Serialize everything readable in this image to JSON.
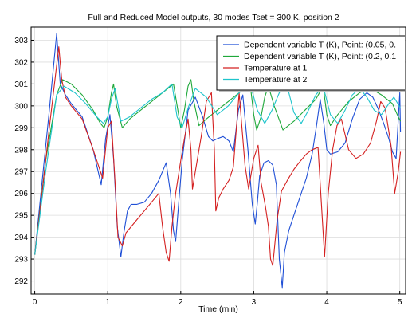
{
  "chart_data": {
    "type": "line",
    "title": "Full and Reduced Model outputs, 30 modes Tset = 300 K, position 2",
    "xlabel": "Time (min)",
    "ylabel": "",
    "xlim": [
      -0.05,
      5.08
    ],
    "ylim": [
      291.4,
      303.6
    ],
    "x_ticks": [
      0,
      1,
      2,
      3,
      4,
      5
    ],
    "y_ticks": [
      292,
      293,
      294,
      295,
      296,
      297,
      298,
      299,
      300,
      301,
      302,
      303
    ],
    "grid": true,
    "legend_position": "top-right",
    "series": [
      {
        "name": "Dependent variable T (K), Point: (0.05, 0.",
        "color": "#1f4fd6",
        "x": [
          0.0,
          0.1,
          0.2,
          0.3,
          0.35,
          0.42,
          0.5,
          0.65,
          0.8,
          0.91,
          0.97,
          1.03,
          1.08,
          1.13,
          1.18,
          1.22,
          1.27,
          1.32,
          1.4,
          1.5,
          1.6,
          1.7,
          1.8,
          1.86,
          1.9,
          1.93,
          1.97,
          2.02,
          2.1,
          2.2,
          2.3,
          2.38,
          2.44,
          2.5,
          2.58,
          2.66,
          2.72,
          2.79,
          2.85,
          2.92,
          2.98,
          3.02,
          3.05,
          3.08,
          3.14,
          3.2,
          3.26,
          3.31,
          3.35,
          3.39,
          3.42,
          3.48,
          3.55,
          3.62,
          3.72,
          3.8,
          3.86,
          3.91,
          3.96,
          4.0,
          4.05,
          4.15,
          4.25,
          4.35,
          4.45,
          4.55,
          4.63,
          4.7,
          4.78,
          4.85,
          4.9,
          4.95,
          5.0,
          5.01
        ],
        "y": [
          293.2,
          296.5,
          299.8,
          303.3,
          301.0,
          300.5,
          300.1,
          299.5,
          298.0,
          296.4,
          298.5,
          299.6,
          297.6,
          294.5,
          293.1,
          294.2,
          295.2,
          295.5,
          295.5,
          295.6,
          296.0,
          296.6,
          297.4,
          296.0,
          294.3,
          293.8,
          295.5,
          297.5,
          299.8,
          300.4,
          299.5,
          298.6,
          298.4,
          298.5,
          298.6,
          298.4,
          297.9,
          299.8,
          300.5,
          298.0,
          295.5,
          294.6,
          295.6,
          296.8,
          297.4,
          297.5,
          297.3,
          296.4,
          293.0,
          291.7,
          293.3,
          294.3,
          295.0,
          295.7,
          296.7,
          297.8,
          299.1,
          300.3,
          299.2,
          298.0,
          297.8,
          297.9,
          298.3,
          299.4,
          300.3,
          300.6,
          300.4,
          299.9,
          299.2,
          298.5,
          297.9,
          297.6,
          300.6,
          298.8
        ]
      },
      {
        "name": "Dependent variable T (K), Point: (0.2, 0.1",
        "color": "#1fa83a",
        "x": [
          0.0,
          0.15,
          0.3,
          0.38,
          0.5,
          0.65,
          0.8,
          0.9,
          0.95,
          1.0,
          1.05,
          1.08,
          1.12,
          1.2,
          1.3,
          1.45,
          1.6,
          1.75,
          1.9,
          1.97,
          2.0,
          2.05,
          2.1,
          2.14,
          2.18,
          2.25,
          2.35,
          2.5,
          2.65,
          2.8,
          2.95,
          3.0,
          3.04,
          3.1,
          3.15,
          3.2,
          3.28,
          3.4,
          3.55,
          3.7,
          3.85,
          3.95,
          4.0,
          4.05,
          4.15,
          4.3,
          4.45,
          4.6,
          4.75,
          4.9,
          4.98,
          5.01
        ],
        "y": [
          293.2,
          297.5,
          300.5,
          301.2,
          301.0,
          300.5,
          299.8,
          299.2,
          299.0,
          299.5,
          300.6,
          301.0,
          300.0,
          299.0,
          299.4,
          299.8,
          300.2,
          300.6,
          301.0,
          299.6,
          299.0,
          299.8,
          300.9,
          301.2,
          300.2,
          299.1,
          299.4,
          299.8,
          300.2,
          300.6,
          301.0,
          299.6,
          298.9,
          299.5,
          300.4,
          300.9,
          300.0,
          298.9,
          299.3,
          299.8,
          300.3,
          300.9,
          299.6,
          299.1,
          299.6,
          300.2,
          300.6,
          300.8,
          300.5,
          300.1,
          299.5,
          299.3
        ]
      },
      {
        "name": "Temperature at 1",
        "color": "#d42020",
        "x": [
          0.0,
          0.1,
          0.2,
          0.33,
          0.37,
          0.42,
          0.5,
          0.65,
          0.8,
          0.93,
          1.0,
          1.05,
          1.1,
          1.14,
          1.2,
          1.25,
          1.3,
          1.4,
          1.5,
          1.6,
          1.7,
          1.75,
          1.8,
          1.84,
          1.88,
          1.93,
          2.0,
          2.05,
          2.1,
          2.14,
          2.16,
          2.2,
          2.28,
          2.35,
          2.42,
          2.46,
          2.48,
          2.52,
          2.58,
          2.66,
          2.72,
          2.8,
          2.88,
          2.93,
          3.0,
          3.06,
          3.1,
          3.16,
          3.2,
          3.23,
          3.26,
          3.32,
          3.38,
          3.46,
          3.55,
          3.62,
          3.72,
          3.8,
          3.88,
          3.97,
          4.02,
          4.08,
          4.14,
          4.2,
          4.3,
          4.4,
          4.5,
          4.6,
          4.68,
          4.74,
          4.8,
          4.88,
          4.93,
          4.98,
          5.01
        ],
        "y": [
          293.2,
          296.0,
          299.0,
          302.7,
          301.2,
          300.4,
          300.0,
          299.4,
          298.0,
          296.7,
          299.0,
          299.3,
          296.5,
          294.0,
          293.6,
          294.2,
          294.4,
          294.8,
          295.2,
          295.6,
          296.0,
          294.5,
          293.3,
          292.9,
          294.5,
          296.0,
          297.5,
          298.5,
          299.4,
          298.0,
          296.2,
          297.0,
          298.6,
          300.2,
          300.6,
          298.0,
          295.2,
          295.8,
          296.2,
          296.6,
          297.2,
          300.6,
          297.3,
          296.2,
          297.6,
          298.2,
          296.5,
          295.4,
          294.5,
          293.0,
          292.7,
          294.8,
          296.1,
          296.6,
          297.1,
          297.4,
          297.8,
          298.0,
          298.1,
          293.1,
          296.0,
          298.0,
          299.1,
          299.4,
          298.0,
          297.6,
          297.8,
          298.3,
          299.3,
          300.2,
          299.9,
          298.2,
          296.0,
          297.0,
          297.9
        ]
      },
      {
        "name": "Temperature at 2",
        "color": "#1ec4cc",
        "x": [
          0.0,
          0.15,
          0.3,
          0.4,
          0.55,
          0.7,
          0.85,
          0.94,
          1.0,
          1.05,
          1.1,
          1.18,
          1.3,
          1.45,
          1.6,
          1.75,
          1.88,
          1.95,
          2.02,
          2.1,
          2.2,
          2.35,
          2.5,
          2.65,
          2.8,
          2.95,
          3.05,
          3.15,
          3.25,
          3.35,
          3.45,
          3.55,
          3.65,
          3.75,
          3.85,
          3.95,
          4.05,
          4.15,
          4.25,
          4.35,
          4.45,
          4.55,
          4.65,
          4.75,
          4.85,
          4.92,
          5.01
        ],
        "y": [
          293.2,
          297.0,
          300.5,
          300.9,
          300.6,
          300.1,
          299.5,
          299.2,
          299.5,
          300.3,
          300.8,
          299.3,
          299.5,
          299.9,
          300.3,
          300.6,
          301.0,
          299.5,
          299.0,
          299.9,
          300.8,
          300.4,
          299.6,
          300.0,
          300.6,
          301.0,
          299.8,
          299.2,
          299.8,
          300.6,
          301.0,
          299.7,
          299.2,
          299.8,
          300.5,
          300.9,
          299.6,
          299.2,
          299.8,
          300.5,
          300.8,
          300.4,
          299.8,
          299.6,
          300.1,
          300.4,
          299.9
        ]
      }
    ]
  }
}
